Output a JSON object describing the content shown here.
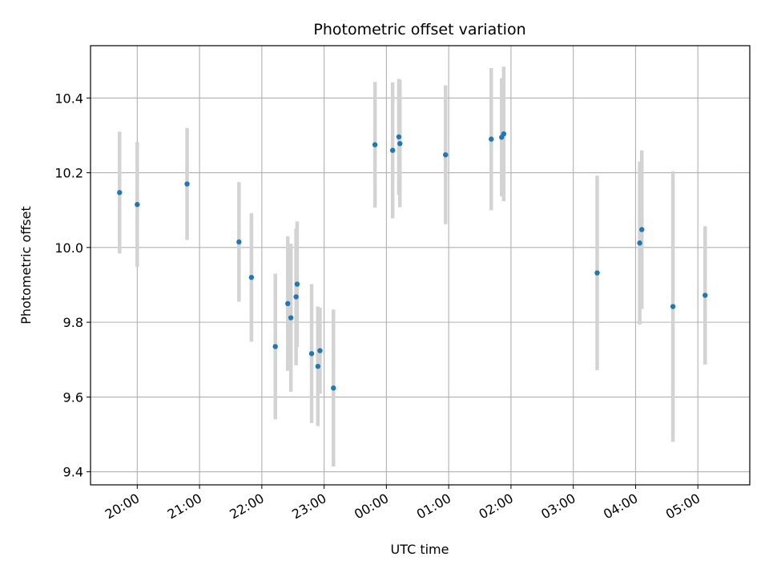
{
  "chart_data": {
    "type": "scatter",
    "title": "Photometric offset variation",
    "xlabel": "UTC time",
    "ylabel": "Photometric offset",
    "grid": true,
    "xaxis": {
      "kind": "time",
      "start": "19:15",
      "end": "05:50",
      "day_rollover_after": "23:59",
      "ticks": [
        "20:00",
        "21:00",
        "22:00",
        "23:00",
        "00:00",
        "01:00",
        "02:00",
        "03:00",
        "04:00",
        "05:00"
      ]
    },
    "ylim": [
      9.365,
      10.54
    ],
    "yticks": [
      "9.4",
      "9.6",
      "9.8",
      "10.0",
      "10.2",
      "10.4"
    ],
    "colors": {
      "point": "#1f77b4",
      "errorbar": "#d3d3d3",
      "grid": "#b0b0b0"
    },
    "points": [
      {
        "x": "19:43",
        "y": 10.147,
        "err": 0.163
      },
      {
        "x": "20:00",
        "y": 10.115,
        "err": 0.167
      },
      {
        "x": "20:48",
        "y": 10.17,
        "err": 0.15
      },
      {
        "x": "21:38",
        "y": 10.015,
        "err": 0.16
      },
      {
        "x": "21:50",
        "y": 9.92,
        "err": 0.172
      },
      {
        "x": "22:13",
        "y": 9.735,
        "err": 0.195
      },
      {
        "x": "22:25",
        "y": 9.85,
        "err": 0.18
      },
      {
        "x": "22:28",
        "y": 9.812,
        "err": 0.198
      },
      {
        "x": "22:33",
        "y": 9.868,
        "err": 0.183
      },
      {
        "x": "22:34",
        "y": 9.902,
        "err": 0.168
      },
      {
        "x": "22:48",
        "y": 9.716,
        "err": 0.186
      },
      {
        "x": "22:54",
        "y": 9.682,
        "err": 0.16
      },
      {
        "x": "22:56",
        "y": 9.724,
        "err": 0.115
      },
      {
        "x": "23:09",
        "y": 9.624,
        "err": 0.21
      },
      {
        "x": "23:49",
        "y": 10.275,
        "err": 0.168
      },
      {
        "x": "00:06",
        "y": 10.26,
        "err": 0.182
      },
      {
        "x": "00:12",
        "y": 10.296,
        "err": 0.155
      },
      {
        "x": "00:13",
        "y": 10.278,
        "err": 0.17
      },
      {
        "x": "00:57",
        "y": 10.248,
        "err": 0.186
      },
      {
        "x": "01:41",
        "y": 10.29,
        "err": 0.19
      },
      {
        "x": "01:51",
        "y": 10.295,
        "err": 0.158
      },
      {
        "x": "01:53",
        "y": 10.304,
        "err": 0.18
      },
      {
        "x": "03:23",
        "y": 9.932,
        "err": 0.26
      },
      {
        "x": "04:04",
        "y": 10.012,
        "err": 0.218
      },
      {
        "x": "04:06",
        "y": 10.048,
        "err": 0.212
      },
      {
        "x": "04:36",
        "y": 9.842,
        "err": 0.362
      },
      {
        "x": "05:07",
        "y": 9.872,
        "err": 0.185
      }
    ]
  }
}
